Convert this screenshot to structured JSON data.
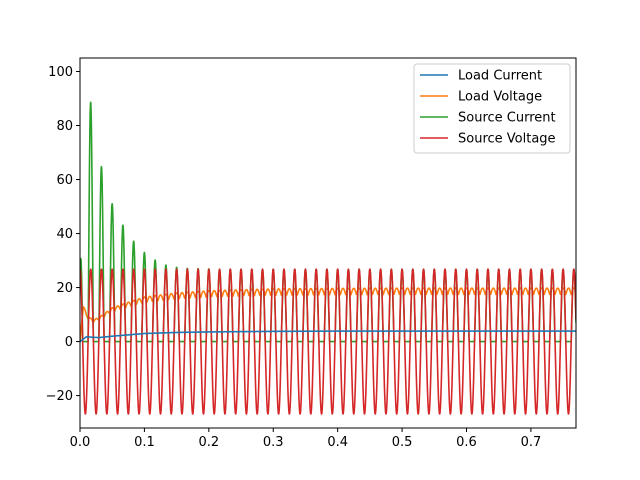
{
  "chart_data": {
    "type": "line",
    "xlim": [
      0.0,
      0.77
    ],
    "ylim": [
      -32,
      105
    ],
    "x_ticks": [
      0.0,
      0.1,
      0.2,
      0.3,
      0.4,
      0.5,
      0.6,
      0.7
    ],
    "x_tick_labels": [
      "0.0",
      "0.1",
      "0.2",
      "0.3",
      "0.4",
      "0.5",
      "0.6",
      "0.7"
    ],
    "y_ticks": [
      -20,
      0,
      20,
      40,
      60,
      80,
      100
    ],
    "y_tick_labels": [
      "−20",
      "0",
      "20",
      "40",
      "60",
      "80",
      "100"
    ],
    "grid": false,
    "legend_position": "top-right",
    "series": [
      {
        "name": "Load Current",
        "color": "#1f77b4",
        "x": [
          0.0,
          0.01,
          0.02,
          0.03,
          0.05,
          0.08,
          0.1,
          0.15,
          0.2,
          0.3,
          0.4,
          0.5,
          0.6,
          0.7,
          0.77
        ],
        "values": [
          0.0,
          1.8,
          1.6,
          1.5,
          2.0,
          2.6,
          3.0,
          3.4,
          3.6,
          3.8,
          3.9,
          3.9,
          3.9,
          3.9,
          3.9
        ]
      },
      {
        "name": "Load Voltage",
        "color": "#ff7f0e",
        "x": [
          0.0,
          0.005,
          0.01,
          0.02,
          0.03,
          0.05,
          0.08,
          0.1,
          0.15,
          0.2,
          0.25,
          0.3,
          0.4,
          0.5,
          0.6,
          0.7,
          0.77
        ],
        "values": [
          0.0,
          14.0,
          10.0,
          8.0,
          9.0,
          12.5,
          15.0,
          16.5,
          18.0,
          18.8,
          19.2,
          19.5,
          19.7,
          19.8,
          19.8,
          19.8,
          19.8
        ]
      },
      {
        "name": "Source Current",
        "color": "#2ca02c",
        "x": [
          0.0,
          0.01,
          0.03,
          0.05,
          0.07,
          0.09,
          0.11,
          0.13,
          0.15,
          0.17,
          0.19,
          0.21,
          0.23,
          0.25,
          0.3,
          0.4,
          0.5,
          0.6,
          0.7,
          0.77
        ],
        "values": [
          26.0,
          99.0,
          67.5,
          51.0,
          41.5,
          35.0,
          31.0,
          28.5,
          27.5,
          27.0,
          27.0,
          26.8,
          26.8,
          26.8,
          26.8,
          26.8,
          26.8,
          26.8,
          26.8,
          26.8
        ]
      },
      {
        "name": "Source Voltage",
        "color": "#d62728",
        "x": [
          0.0,
          0.1,
          0.2,
          0.3,
          0.4,
          0.5,
          0.6,
          0.7,
          0.77
        ],
        "values": [
          26.8,
          26.8,
          26.8,
          26.8,
          26.8,
          26.8,
          26.8,
          26.8,
          26.8
        ]
      }
    ]
  }
}
